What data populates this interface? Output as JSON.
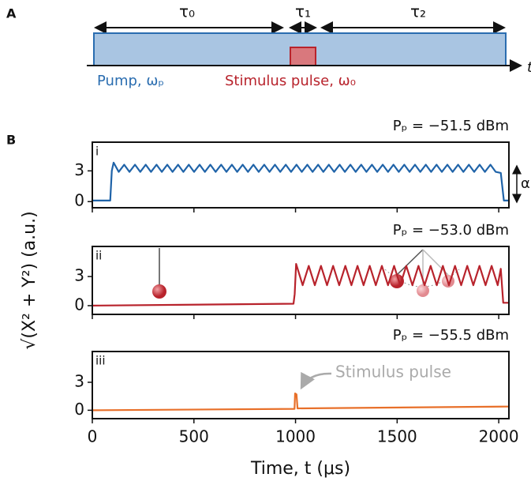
{
  "diagram": {
    "label": "A",
    "tau0": "τ₀",
    "tau1": "τ₁",
    "tau2": "τ₂",
    "time_axis": "t",
    "pump": "Pump, ωₚ",
    "stimulus": "Stimulus pulse, ω₀"
  },
  "panel_b_label": "B",
  "chart_data": [
    {
      "type": "line",
      "title": "Pₚ = −51.5 dBm",
      "panel": "i",
      "alpha_label": "α",
      "xlim": [
        0,
        2050
      ],
      "xticks": [
        0,
        500,
        1000,
        1500,
        2000
      ],
      "ylim": [
        -0.6,
        5.8
      ],
      "yticks": [
        0,
        3
      ],
      "series": [
        {
          "color": "#1f63a8",
          "x": [
            0,
            88,
            96,
            105,
            130,
            157,
            183,
            210,
            236,
            263,
            289,
            316,
            342,
            369,
            395,
            422,
            448,
            475,
            501,
            528,
            554,
            581,
            607,
            634,
            660,
            687,
            713,
            740,
            766,
            793,
            819,
            846,
            872,
            899,
            925,
            952,
            978,
            1005,
            1031,
            1058,
            1084,
            1111,
            1137,
            1164,
            1190,
            1217,
            1243,
            1270,
            1296,
            1323,
            1349,
            1376,
            1402,
            1429,
            1455,
            1482,
            1508,
            1535,
            1561,
            1588,
            1614,
            1641,
            1667,
            1694,
            1720,
            1747,
            1773,
            1800,
            1826,
            1853,
            1879,
            1906,
            1932,
            1959,
            1985,
            2010,
            2025,
            2050
          ],
          "values": [
            0.1,
            0.1,
            3.0,
            3.8,
            2.9,
            3.6,
            2.9,
            3.6,
            2.9,
            3.6,
            2.9,
            3.6,
            2.9,
            3.6,
            2.9,
            3.6,
            2.9,
            3.6,
            2.9,
            3.6,
            2.9,
            3.6,
            2.9,
            3.6,
            2.9,
            3.6,
            2.9,
            3.6,
            2.9,
            3.6,
            2.9,
            3.6,
            2.9,
            3.6,
            2.9,
            3.6,
            2.9,
            3.6,
            2.9,
            3.6,
            2.9,
            3.6,
            2.9,
            3.6,
            2.9,
            3.6,
            2.9,
            3.6,
            2.9,
            3.6,
            2.9,
            3.6,
            2.9,
            3.6,
            2.9,
            3.6,
            2.9,
            3.6,
            2.9,
            3.6,
            2.9,
            3.6,
            2.9,
            3.6,
            2.9,
            3.6,
            2.9,
            3.6,
            2.9,
            3.6,
            2.9,
            3.6,
            2.9,
            3.6,
            2.9,
            2.8,
            0.1,
            0.1
          ]
        }
      ]
    },
    {
      "type": "line",
      "title": "Pₚ = −53.0 dBm",
      "panel": "ii",
      "ylabel": "√(X² + Y²) (a.u.)",
      "xlim": [
        0,
        2050
      ],
      "xticks": [
        0,
        500,
        1000,
        1500,
        2000
      ],
      "ylim": [
        -0.9,
        6.1
      ],
      "yticks": [
        0,
        3
      ],
      "series": [
        {
          "color": "#b8232c",
          "x": [
            0,
            990,
            996,
            1003,
            1035,
            1065,
            1095,
            1125,
            1155,
            1185,
            1215,
            1245,
            1275,
            1305,
            1335,
            1365,
            1395,
            1425,
            1455,
            1485,
            1515,
            1545,
            1575,
            1605,
            1635,
            1665,
            1695,
            1725,
            1755,
            1785,
            1815,
            1845,
            1875,
            1905,
            1935,
            1965,
            1995,
            2010,
            2022,
            2050
          ],
          "values": [
            0,
            0.2,
            1.2,
            4.3,
            2.1,
            4.1,
            2.1,
            4.1,
            2.1,
            4.1,
            2.1,
            4.1,
            2.1,
            4.1,
            2.1,
            4.1,
            2.1,
            4.1,
            2.1,
            4.1,
            2.1,
            4.1,
            2.1,
            4.1,
            2.1,
            4.1,
            2.1,
            4.1,
            2.1,
            4.1,
            2.1,
            4.1,
            2.1,
            4.1,
            2.1,
            4.1,
            2.1,
            3.8,
            0.3,
            0.3
          ]
        }
      ]
    },
    {
      "type": "line",
      "title": "Pₚ = −55.5 dBm",
      "panel": "iii",
      "annotation": "Stimulus pulse",
      "xlabel": "Time, t (μs)",
      "xlim": [
        0,
        2050
      ],
      "xticks": [
        0,
        500,
        1000,
        1500,
        2000
      ],
      "ylim": [
        -0.9,
        6.3
      ],
      "yticks": [
        0,
        3
      ],
      "series": [
        {
          "color": "#e8702a",
          "x": [
            0,
            995,
            998,
            1005,
            1010,
            2050
          ],
          "values": [
            0,
            0.15,
            1.8,
            1.7,
            0.2,
            0.4
          ]
        }
      ]
    }
  ]
}
